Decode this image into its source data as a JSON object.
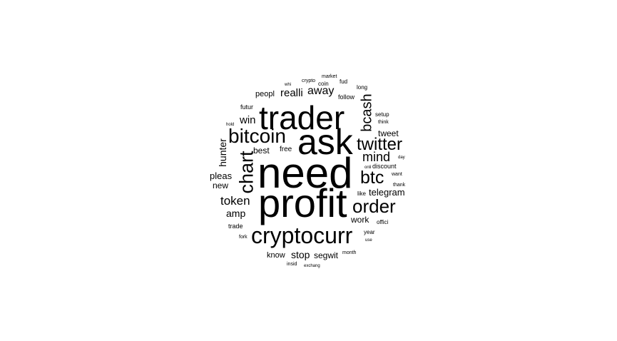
{
  "colors": {
    "background": "#ffffff",
    "text": "#000000"
  },
  "words": [
    "need",
    "profit",
    "trader",
    "ask",
    "cryptocurr",
    "bitcoin",
    "order",
    "twitter",
    "chart",
    "btc",
    "bcash",
    "mind",
    "token",
    "realli",
    "away",
    "win",
    "hunter",
    "stop",
    "segwit",
    "telegram",
    "amp",
    "tweet",
    "pleas",
    "best",
    "new",
    "work",
    "free",
    "peopl",
    "know",
    "trade",
    "futur",
    "follow",
    "discount",
    "fud",
    "coin",
    "market",
    "crypto",
    "whi",
    "long",
    "setup",
    "think",
    "hold",
    "day",
    "onli",
    "want",
    "thank",
    "like",
    "offici",
    "year",
    "use",
    "fork",
    "month",
    "insid",
    "exchang"
  ]
}
